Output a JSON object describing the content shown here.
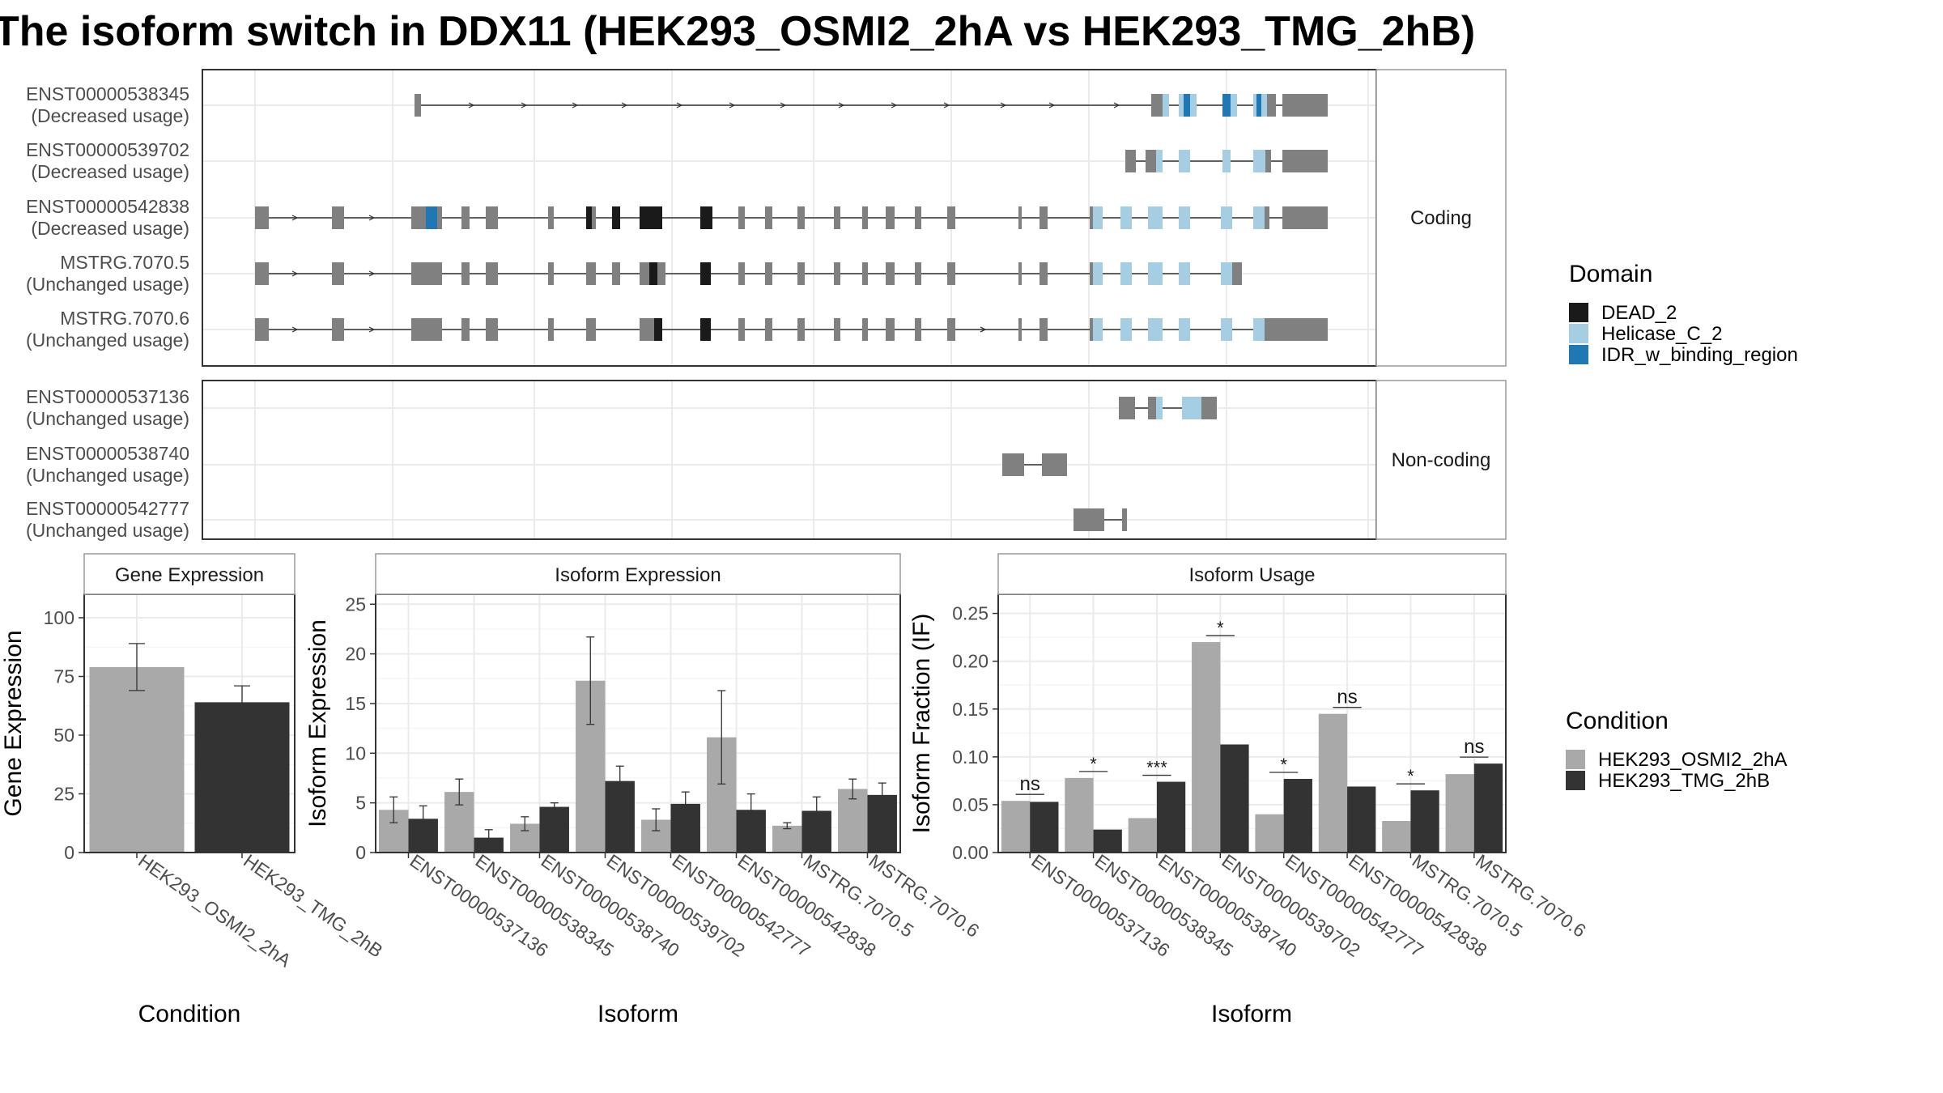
{
  "title": "The isoform switch in DDX11 (HEK293_OSMI2_2hA vs HEK293_TMG_2hB)",
  "domain_legend": {
    "title": "Domain",
    "items": [
      {
        "label": "DEAD_2",
        "color": "#1a1a1a"
      },
      {
        "label": "Helicase_C_2",
        "color": "#a6cee3"
      },
      {
        "label": "IDR_w_binding_region",
        "color": "#1f78b4"
      }
    ]
  },
  "condition_legend": {
    "title": "Condition",
    "items": [
      {
        "label": "HEK293_OSMI2_2hA",
        "color": "#a9a9a9"
      },
      {
        "label": "HEK293_TMG_2hB",
        "color": "#333333"
      }
    ]
  },
  "structure_panels": [
    {
      "strip": "Coding",
      "transcripts": [
        {
          "id": "ENST00000538345",
          "usage": "(Decreased usage)"
        },
        {
          "id": "ENST00000539702",
          "usage": "(Decreased usage)"
        },
        {
          "id": "ENST00000542838",
          "usage": "(Decreased usage)"
        },
        {
          "id": "MSTRG.7070.5",
          "usage": "(Unchanged usage)"
        },
        {
          "id": "MSTRG.7070.6",
          "usage": "(Unchanged usage)"
        }
      ]
    },
    {
      "strip": "Non-coding",
      "transcripts": [
        {
          "id": "ENST00000537136",
          "usage": "(Unchanged usage)"
        },
        {
          "id": "ENST00000538740",
          "usage": "(Unchanged usage)"
        },
        {
          "id": "ENST00000542777",
          "usage": "(Unchanged usage)"
        }
      ]
    }
  ],
  "chart_data": [
    {
      "type": "bar",
      "title": "Gene Expression",
      "xlabel": "Condition",
      "ylabel": "Gene Expression",
      "ylim": [
        0,
        110
      ],
      "yticks": [
        0,
        25,
        50,
        75,
        100
      ],
      "categories": [
        "HEK293_OSMI2_2hA",
        "HEK293_TMG_2hB"
      ],
      "values": [
        79,
        64
      ],
      "errors": [
        10,
        7
      ]
    },
    {
      "type": "bar",
      "title": "Isoform Expression",
      "xlabel": "Isoform",
      "ylabel": "Isoform Expression",
      "ylim": [
        0,
        26
      ],
      "yticks": [
        0,
        5,
        10,
        15,
        20,
        25
      ],
      "categories": [
        "ENST00000537136",
        "ENST00000538345",
        "ENST00000538740",
        "ENST00000539702",
        "ENST00000542777",
        "ENST00000542838",
        "MSTRG.7070.5",
        "MSTRG.7070.6"
      ],
      "series": [
        {
          "name": "HEK293_OSMI2_2hA",
          "values": [
            4.3,
            6.1,
            2.9,
            17.3,
            3.3,
            11.6,
            2.7,
            6.4
          ],
          "errors": [
            1.3,
            1.3,
            0.7,
            4.4,
            1.1,
            4.7,
            0.3,
            1.0
          ]
        },
        {
          "name": "HEK293_TMG_2hB",
          "values": [
            3.4,
            1.5,
            4.6,
            7.2,
            4.9,
            4.3,
            4.2,
            5.8
          ],
          "errors": [
            1.3,
            0.8,
            0.4,
            1.5,
            1.2,
            1.6,
            1.4,
            1.2
          ]
        }
      ]
    },
    {
      "type": "bar",
      "title": "Isoform Usage",
      "xlabel": "Isoform",
      "ylabel": "Isoform Fraction (IF)",
      "ylim": [
        0,
        0.27
      ],
      "yticks": [
        0.0,
        0.05,
        0.1,
        0.15,
        0.2,
        0.25
      ],
      "ytick_labels": [
        "0.00",
        "0.05",
        "0.10",
        "0.15",
        "0.20",
        "0.25"
      ],
      "categories": [
        "ENST00000537136",
        "ENST00000538345",
        "ENST00000538740",
        "ENST00000539702",
        "ENST00000542777",
        "ENST00000542838",
        "MSTRG.7070.5",
        "MSTRG.7070.6"
      ],
      "series": [
        {
          "name": "HEK293_OSMI2_2hA",
          "values": [
            0.054,
            0.078,
            0.036,
            0.22,
            0.04,
            0.145,
            0.033,
            0.082
          ]
        },
        {
          "name": "HEK293_TMG_2hB",
          "values": [
            0.053,
            0.024,
            0.074,
            0.113,
            0.077,
            0.069,
            0.065,
            0.093
          ]
        }
      ],
      "significance": [
        "ns",
        "*",
        "***",
        "*",
        "*",
        "ns",
        "*",
        "ns"
      ]
    }
  ]
}
